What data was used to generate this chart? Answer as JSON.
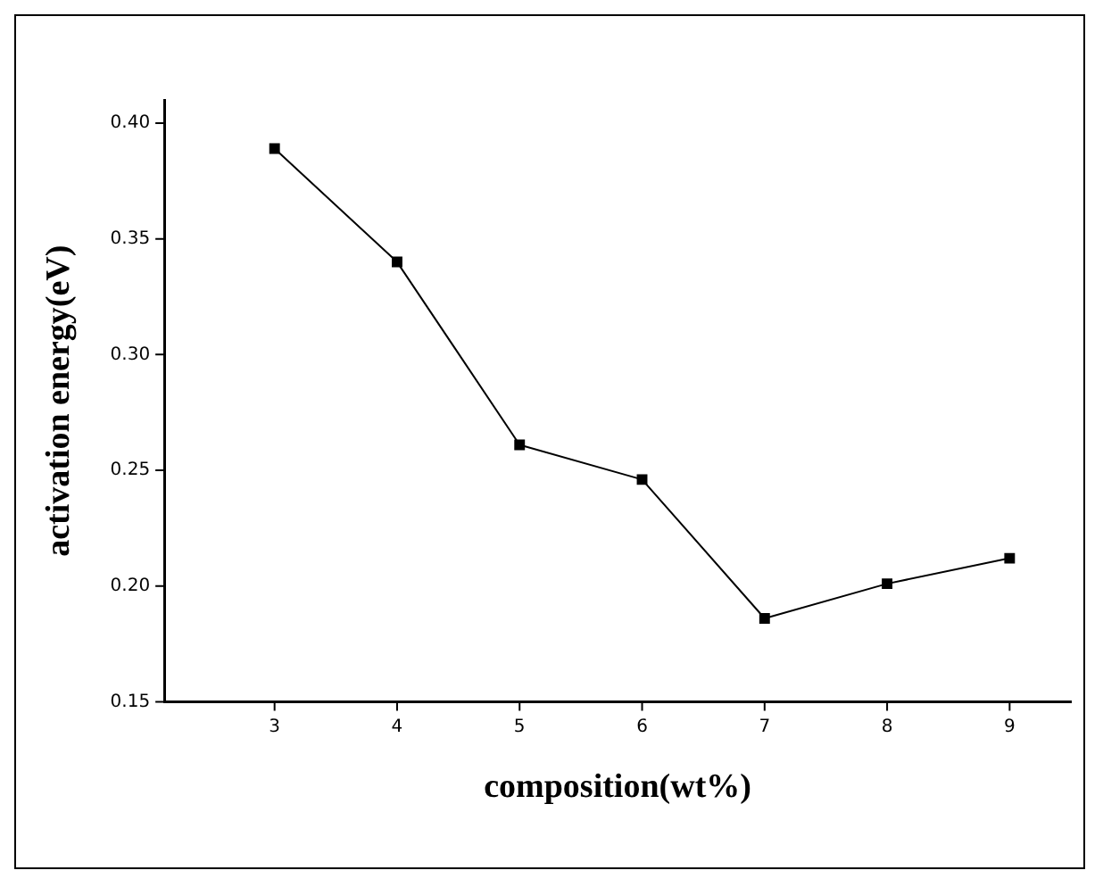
{
  "chart_data": {
    "type": "line",
    "xlabel": "composition(wt%)",
    "ylabel": "activation energy(eV)",
    "x": [
      3,
      4,
      5,
      6,
      7,
      8,
      9
    ],
    "values": [
      0.389,
      0.34,
      0.261,
      0.246,
      0.186,
      0.201,
      0.212
    ],
    "color": "#000000",
    "xlim": [
      2.1,
      9.5
    ],
    "xticks": [
      3,
      4,
      5,
      6,
      7,
      8,
      9
    ],
    "ylim": [
      0.15,
      0.41
    ],
    "yticks": [
      {
        "value": 0.15,
        "label": "0.15"
      },
      {
        "value": 0.2,
        "label": "0.20"
      },
      {
        "value": 0.25,
        "label": "0.25"
      },
      {
        "value": 0.3,
        "label": "0.30"
      },
      {
        "value": 0.35,
        "label": "0.35"
      },
      {
        "value": 0.4,
        "label": "0.40"
      }
    ],
    "marker": "square",
    "line_style": "solid",
    "grid": false,
    "legend": false
  }
}
